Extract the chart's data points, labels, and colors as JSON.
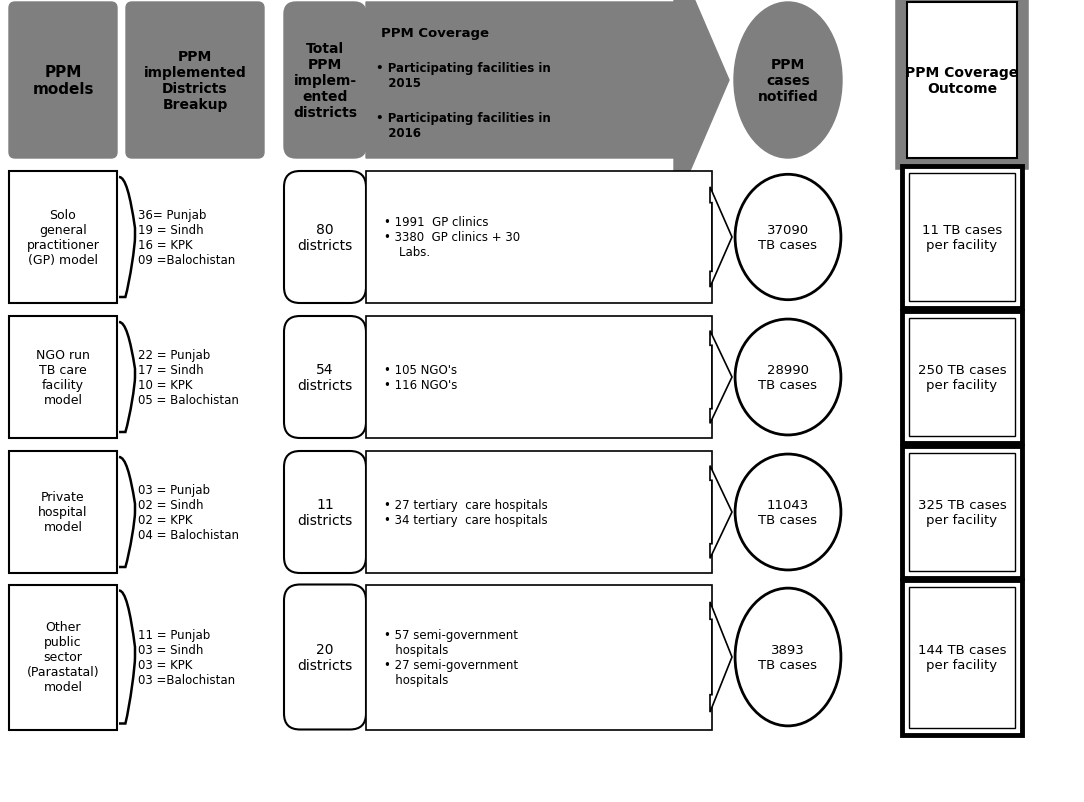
{
  "bg_color": "#ffffff",
  "header_gray": "#7f7f7f",
  "black": "#000000",
  "white": "#ffffff",
  "header_row": {
    "col1": "PPM\nmodels",
    "col2": "PPM\nimplemented\nDistricts\nBreakup",
    "col3": "Total\nPPM\nimplem-\nented\ndistricts",
    "col4_title": "PPM Coverage",
    "col4_b1": "• Participating facilities in\n   2015",
    "col4_b2": "• Participating facilities in\n   2016",
    "col5": "PPM\ncases\nnotified",
    "col6": "PPM Coverage\nOutcome"
  },
  "rows": [
    {
      "model": "Solo\ngeneral\npractitioner\n(GP) model",
      "breakup": "36= Punjab\n19 = Sindh\n16 = KPK\n09 =Balochistan",
      "districts": "80\ndistricts",
      "coverage": "• 1991  GP clinics\n• 3380  GP clinics + 30\n    Labs.",
      "cases": "37090\nTB cases",
      "outcome": "11 TB cases\nper facility"
    },
    {
      "model": "NGO run\nTB care\nfacility\nmodel",
      "breakup": "22 = Punjab\n17 = Sindh\n10 = KPK\n05 = Balochistan",
      "districts": "54\ndistricts",
      "coverage": "• 105 NGO's\n• 116 NGO's",
      "cases": "28990\nTB cases",
      "outcome": "250 TB cases\nper facility"
    },
    {
      "model": "Private\nhospital\nmodel",
      "breakup": "03 = Punjab\n02 = Sindh\n02 = KPK\n04 = Balochistan",
      "districts": "11\ndistricts",
      "coverage": "• 27 tertiary  care hospitals\n• 34 tertiary  care hospitals",
      "cases": "11043\nTB cases",
      "outcome": "325 TB cases\nper facility"
    },
    {
      "model": "Other\npublic\nsector\n(Parastatal)\nmodel",
      "breakup": "11 = Punjab\n03 = Sindh\n03 = KPK\n03 =Balochistan",
      "districts": "20\ndistricts",
      "coverage": "• 57 semi-government\n   hospitals\n• 27 semi-government\n   hospitals",
      "cases": "3893\nTB cases",
      "outcome": "144 TB cases\nper facility"
    }
  ]
}
